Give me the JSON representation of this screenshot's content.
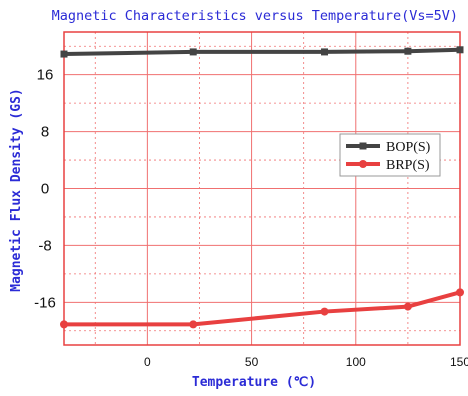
{
  "chart_data": {
    "type": "line",
    "title": "Magnetic Characteristics versus Temperature(Vs=5V)",
    "xlabel": "Temperature (℃)",
    "ylabel": "Magnetic Flux Density (GS)",
    "xlim": [
      -40,
      150
    ],
    "ylim": [
      -22,
      22
    ],
    "xticks": [
      0,
      50,
      100,
      150
    ],
    "xtick_labels": [
      "0",
      "50",
      "100",
      "150"
    ],
    "yticks": [
      16,
      8,
      0,
      -8,
      -16
    ],
    "ytick_labels": [
      "16",
      "8",
      "0",
      "-8",
      "-16"
    ],
    "grid": true,
    "legend_position": "right",
    "series": [
      {
        "name": "BOP(S)",
        "color": "#444444",
        "x": [
          -40,
          22,
          85,
          125,
          150
        ],
        "y": [
          18.9,
          19.2,
          19.2,
          19.3,
          19.5
        ]
      },
      {
        "name": "BRP(S)",
        "color": "#e84040",
        "x": [
          -40,
          22,
          85,
          125,
          150
        ],
        "y": [
          -19.1,
          -19.1,
          -17.3,
          -16.6,
          -14.6
        ]
      }
    ]
  }
}
